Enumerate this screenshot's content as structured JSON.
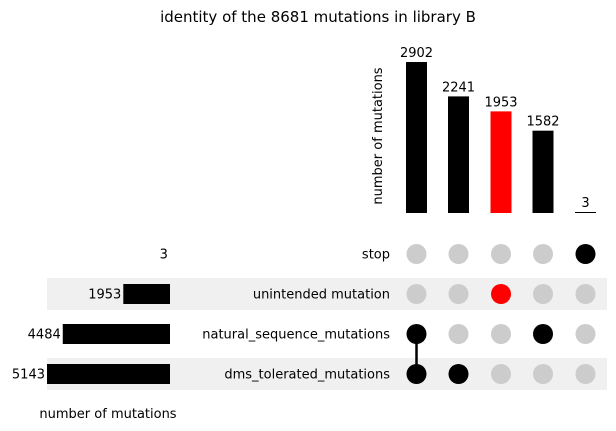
{
  "chart_data": {
    "type": "upset",
    "title": "identity of the 8681 mutations in library B",
    "intersection_axis_label": "number of mutations",
    "set_axis_label": "number of mutations",
    "sets": [
      {
        "name": "stop",
        "size": 3
      },
      {
        "name": "unintended mutation",
        "size": 1953
      },
      {
        "name": "natural_sequence_mutations",
        "size": 4484
      },
      {
        "name": "dms_tolerated_mutations",
        "size": 5143
      }
    ],
    "intersections": [
      {
        "value": 2902,
        "members": [
          "natural_sequence_mutations",
          "dms_tolerated_mutations"
        ],
        "color": "#000000"
      },
      {
        "value": 2241,
        "members": [
          "dms_tolerated_mutations"
        ],
        "color": "#000000"
      },
      {
        "value": 1953,
        "members": [
          "unintended mutation"
        ],
        "color": "#ff0000"
      },
      {
        "value": 1582,
        "members": [
          "natural_sequence_mutations"
        ],
        "color": "#000000"
      },
      {
        "value": 3,
        "members": [
          "stop"
        ],
        "color": "#000000"
      }
    ],
    "colors": {
      "bar": "#000000",
      "highlight": "#ff0000",
      "inactive_dot": "#cccccc",
      "shading": "#f0f0f0"
    }
  }
}
